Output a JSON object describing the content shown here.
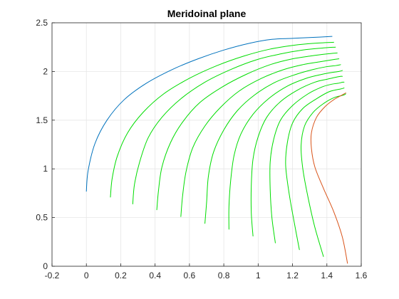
{
  "chart_data": {
    "type": "line",
    "title": "Meridoinal plane",
    "xlabel": "",
    "ylabel": "",
    "xlim": [
      -0.2,
      1.6
    ],
    "ylim": [
      0,
      2.5
    ],
    "xticks": [
      -0.2,
      0,
      0.2,
      0.4,
      0.6,
      0.8,
      1,
      1.2,
      1.4,
      1.6
    ],
    "xtick_labels": [
      "-0.2",
      "0",
      "0.2",
      "0.4",
      "0.6",
      "0.8",
      "1",
      "1.2",
      "1.4",
      "1.6"
    ],
    "yticks": [
      0,
      0.5,
      1,
      1.5,
      2,
      2.5
    ],
    "ytick_labels": [
      "0",
      "0.5",
      "1",
      "1.5",
      "2",
      "2.5"
    ],
    "grid": true,
    "colors": {
      "hub": "#0072bd",
      "shroud": "#d95319",
      "inner": "#00dd00",
      "grid": "#e6e6e6",
      "axis": "#262626"
    },
    "series": [
      {
        "role": "hub",
        "x": [
          0,
          0.01,
          0.05,
          0.12,
          0.22,
          0.35,
          0.5,
          0.65,
          0.8,
          0.95,
          1.08,
          1.2,
          1.32,
          1.43
        ],
        "y": [
          0.77,
          0.98,
          1.26,
          1.5,
          1.71,
          1.88,
          2.02,
          2.13,
          2.22,
          2.29,
          2.33,
          2.34,
          2.35,
          2.36
        ]
      },
      {
        "role": "inner",
        "x": [
          0.14,
          0.15,
          0.18,
          0.24,
          0.33,
          0.45,
          0.6,
          0.76,
          0.92,
          1.07,
          1.21,
          1.33,
          1.44
        ],
        "y": [
          0.71,
          0.9,
          1.13,
          1.37,
          1.58,
          1.77,
          1.93,
          2.06,
          2.16,
          2.23,
          2.27,
          2.29,
          2.3
        ]
      },
      {
        "role": "inner",
        "x": [
          0.27,
          0.28,
          0.31,
          0.36,
          0.44,
          0.55,
          0.69,
          0.84,
          0.99,
          1.13,
          1.26,
          1.37,
          1.45
        ],
        "y": [
          0.64,
          0.84,
          1.07,
          1.32,
          1.53,
          1.72,
          1.89,
          2.02,
          2.12,
          2.18,
          2.22,
          2.24,
          2.25
        ]
      },
      {
        "role": "inner",
        "x": [
          0.41,
          0.42,
          0.44,
          0.49,
          0.56,
          0.66,
          0.79,
          0.93,
          1.07,
          1.2,
          1.31,
          1.4,
          1.46
        ],
        "y": [
          0.58,
          0.78,
          1.02,
          1.27,
          1.48,
          1.68,
          1.84,
          1.97,
          2.07,
          2.13,
          2.16,
          2.18,
          2.19
        ]
      },
      {
        "role": "inner",
        "x": [
          0.55,
          0.56,
          0.58,
          0.62,
          0.69,
          0.78,
          0.89,
          1.02,
          1.15,
          1.26,
          1.36,
          1.43,
          1.47
        ],
        "y": [
          0.51,
          0.72,
          0.97,
          1.22,
          1.44,
          1.63,
          1.8,
          1.93,
          2.02,
          2.07,
          2.1,
          2.12,
          2.13
        ]
      },
      {
        "role": "inner",
        "x": [
          0.69,
          0.7,
          0.71,
          0.74,
          0.8,
          0.88,
          0.98,
          1.1,
          1.22,
          1.32,
          1.4,
          1.45,
          1.48
        ],
        "y": [
          0.44,
          0.66,
          0.92,
          1.17,
          1.4,
          1.6,
          1.76,
          1.89,
          1.97,
          2.02,
          2.05,
          2.06,
          2.07
        ]
      },
      {
        "role": "inner",
        "x": [
          0.83,
          0.83,
          0.84,
          0.86,
          0.9,
          0.97,
          1.06,
          1.17,
          1.28,
          1.37,
          1.43,
          1.47,
          1.49
        ],
        "y": [
          0.38,
          0.61,
          0.88,
          1.14,
          1.36,
          1.56,
          1.72,
          1.85,
          1.93,
          1.97,
          1.99,
          2.0,
          2.01
        ]
      },
      {
        "role": "inner",
        "x": [
          0.97,
          0.96,
          0.96,
          0.97,
          1.0,
          1.05,
          1.13,
          1.23,
          1.33,
          1.4,
          1.45,
          1.48,
          1.49
        ],
        "y": [
          0.31,
          0.55,
          0.83,
          1.1,
          1.33,
          1.53,
          1.69,
          1.81,
          1.89,
          1.92,
          1.94,
          1.95,
          1.95
        ]
      },
      {
        "role": "inner",
        "x": [
          1.1,
          1.08,
          1.07,
          1.07,
          1.09,
          1.13,
          1.2,
          1.29,
          1.37,
          1.43,
          1.47,
          1.49,
          1.5
        ],
        "y": [
          0.24,
          0.5,
          0.79,
          1.07,
          1.3,
          1.5,
          1.65,
          1.77,
          1.84,
          1.87,
          1.88,
          1.89,
          1.89
        ]
      },
      {
        "role": "inner",
        "x": [
          1.24,
          1.21,
          1.18,
          1.16,
          1.17,
          1.2,
          1.26,
          1.34,
          1.41,
          1.45,
          1.48,
          1.5
        ],
        "y": [
          0.17,
          0.45,
          0.75,
          1.04,
          1.27,
          1.47,
          1.62,
          1.72,
          1.79,
          1.81,
          1.82,
          1.83
        ]
      },
      {
        "role": "inner",
        "x": [
          1.38,
          1.33,
          1.29,
          1.26,
          1.25,
          1.27,
          1.32,
          1.38,
          1.44,
          1.48,
          1.5,
          1.51
        ],
        "y": [
          0.1,
          0.4,
          0.71,
          1.0,
          1.24,
          1.44,
          1.58,
          1.67,
          1.73,
          1.75,
          1.76,
          1.77
        ]
      },
      {
        "role": "shroud",
        "x": [
          1.52,
          1.49,
          1.44,
          1.38,
          1.33,
          1.31,
          1.31,
          1.34,
          1.39,
          1.44,
          1.48,
          1.51
        ],
        "y": [
          0.03,
          0.3,
          0.56,
          0.8,
          1.02,
          1.21,
          1.37,
          1.53,
          1.64,
          1.71,
          1.75,
          1.78
        ]
      }
    ]
  }
}
